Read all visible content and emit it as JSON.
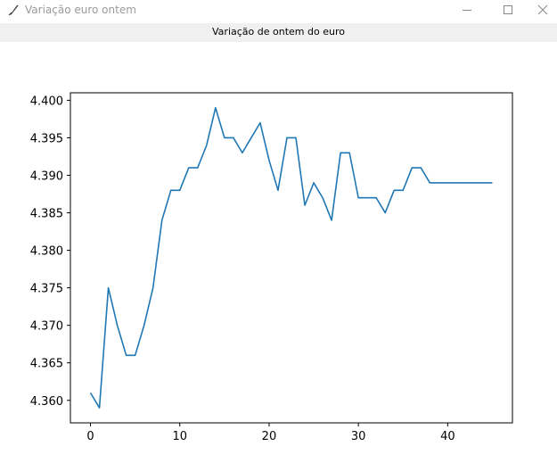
{
  "window": {
    "title": "Variação euro ontem"
  },
  "label": {
    "text": "Variação de ontem do euro"
  },
  "chart_data": {
    "type": "line",
    "title": "",
    "xlabel": "",
    "ylabel": "",
    "xlim": [
      -2.25,
      47.25
    ],
    "ylim": [
      4.357,
      4.401
    ],
    "x_ticks": [
      0,
      10,
      20,
      30,
      40
    ],
    "y_ticks": [
      4.36,
      4.365,
      4.37,
      4.375,
      4.38,
      4.385,
      4.39,
      4.395,
      4.4
    ],
    "grid": false,
    "line_color": "#1f77b4",
    "series": [
      {
        "x": [
          0,
          1,
          2,
          3,
          4,
          5,
          6,
          7,
          8,
          9,
          10,
          11,
          12,
          13,
          14,
          15,
          16,
          17,
          18,
          19,
          20,
          21,
          22,
          23,
          24,
          25,
          26,
          27,
          28,
          29,
          30,
          31,
          32,
          33,
          34,
          35,
          36,
          37,
          38,
          39,
          40,
          41,
          42,
          43,
          44,
          45
        ],
        "y": [
          4.361,
          4.359,
          4.375,
          4.37,
          4.366,
          4.366,
          4.37,
          4.375,
          4.384,
          4.388,
          4.388,
          4.391,
          4.391,
          4.394,
          4.399,
          4.395,
          4.395,
          4.393,
          4.395,
          4.397,
          4.392,
          4.388,
          4.395,
          4.395,
          4.386,
          4.389,
          4.387,
          4.384,
          4.393,
          4.393,
          4.387,
          4.387,
          4.387,
          4.385,
          4.388,
          4.388,
          4.391,
          4.391,
          4.389,
          4.389,
          4.389,
          4.389,
          4.389,
          4.389,
          4.389,
          4.389
        ]
      }
    ]
  }
}
